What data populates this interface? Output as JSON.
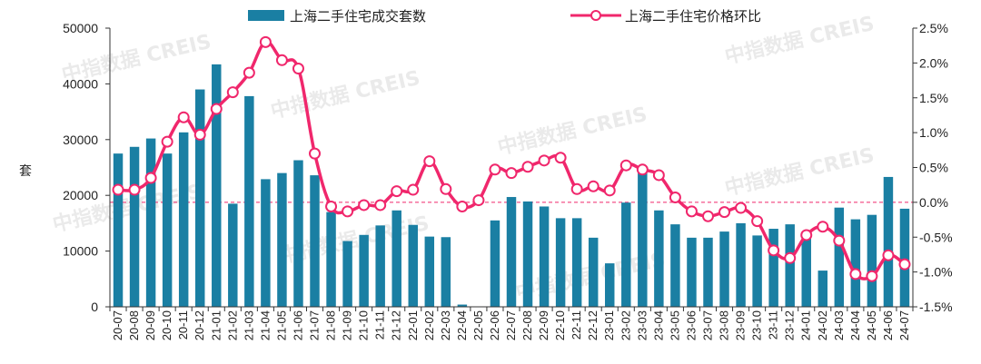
{
  "watermark": "中指数据 CREIS",
  "colors": {
    "bar": "#1a7fa3",
    "line": "#f0276c",
    "marker_fill": "#ffffff",
    "axis": "#333333"
  },
  "chart_data": {
    "type": "bar",
    "y_left_label": "套",
    "y_left_ticks": [
      "0",
      "10000",
      "20000",
      "30000",
      "40000",
      "50000"
    ],
    "y_left_range": [
      0,
      50000
    ],
    "y_right_ticks": [
      "-1.5%",
      "-1.0%",
      "-0.5%",
      "0.0%",
      "0.5%",
      "1.0%",
      "1.5%",
      "2.0%",
      "2.5%"
    ],
    "y_right_range": [
      -1.5,
      2.5
    ],
    "legend": {
      "position": "top"
    },
    "categories": [
      "20-07",
      "20-08",
      "20-09",
      "20-10",
      "20-11",
      "20-12",
      "21-01",
      "21-02",
      "21-03",
      "21-04",
      "21-05",
      "21-06",
      "21-07",
      "21-08",
      "21-09",
      "21-10",
      "21-11",
      "21-12",
      "22-01",
      "22-02",
      "22-03",
      "22-04",
      "22-05",
      "22-06",
      "22-07",
      "22-08",
      "22-09",
      "22-10",
      "22-11",
      "22-12",
      "23-01",
      "23-02",
      "23-03",
      "23-04",
      "23-05",
      "23-06",
      "23-07",
      "23-08",
      "23-09",
      "23-10",
      "23-11",
      "23-12",
      "24-01",
      "24-02",
      "24-03",
      "24-04",
      "24-05",
      "24-06",
      "24-07"
    ],
    "series": [
      {
        "name": "上海二手住宅成交套数",
        "type": "bar",
        "axis": "left",
        "values": [
          27500,
          28700,
          30200,
          27500,
          31300,
          39000,
          43500,
          18500,
          37800,
          22900,
          24000,
          26300,
          23600,
          17000,
          11800,
          12900,
          14600,
          17300,
          14700,
          12600,
          12500,
          400,
          0,
          15500,
          19700,
          18900,
          18000,
          15900,
          15900,
          12400,
          7800,
          18700,
          24200,
          17300,
          14800,
          12400,
          12400,
          13500,
          15000,
          12800,
          14000,
          14800,
          12500,
          6500,
          17800,
          15700,
          16500,
          23300,
          17600
        ]
      },
      {
        "name": "上海二手住宅价格环比",
        "type": "line",
        "axis": "right",
        "values": [
          0.18,
          0.18,
          0.35,
          0.87,
          1.22,
          0.97,
          1.34,
          1.58,
          1.86,
          2.3,
          2.04,
          1.92,
          0.7,
          -0.06,
          -0.13,
          -0.04,
          -0.04,
          0.16,
          0.18,
          0.59,
          0.19,
          -0.06,
          0.03,
          0.47,
          0.42,
          0.51,
          0.6,
          0.64,
          0.19,
          0.23,
          0.17,
          0.53,
          0.47,
          0.39,
          0.07,
          -0.13,
          -0.2,
          -0.14,
          -0.08,
          -0.27,
          -0.69,
          -0.8,
          -0.47,
          -0.35,
          -0.55,
          -1.03,
          -1.06,
          -0.76,
          -0.89
        ]
      }
    ]
  }
}
